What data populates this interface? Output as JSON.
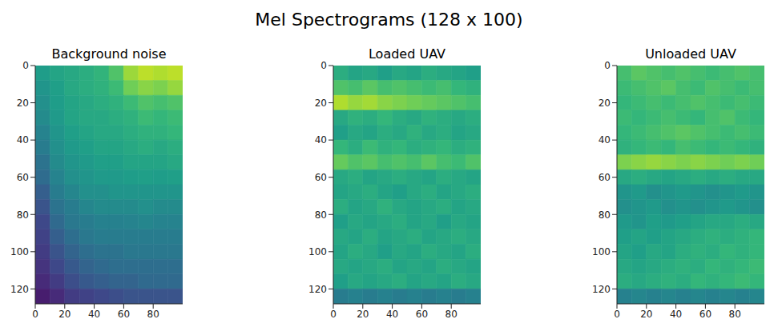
{
  "title": "Mel Spectrograms (128 x 100)",
  "chart_data": [
    {
      "type": "heatmap",
      "title": "Background noise",
      "xlim": [
        0,
        100
      ],
      "ylim": [
        128,
        0
      ],
      "xticks": [
        0,
        20,
        40,
        60,
        80
      ],
      "yticks": [
        0,
        20,
        40,
        60,
        80,
        100,
        120
      ],
      "cells": [
        [
          0.55,
          0.58,
          0.6,
          0.62,
          0.65,
          0.72,
          0.85,
          0.9,
          0.88,
          0.9
        ],
        [
          0.52,
          0.56,
          0.6,
          0.62,
          0.64,
          0.68,
          0.78,
          0.82,
          0.8,
          0.84
        ],
        [
          0.5,
          0.55,
          0.58,
          0.6,
          0.62,
          0.64,
          0.68,
          0.72,
          0.7,
          0.72
        ],
        [
          0.48,
          0.54,
          0.58,
          0.6,
          0.6,
          0.62,
          0.64,
          0.68,
          0.66,
          0.68
        ],
        [
          0.45,
          0.52,
          0.56,
          0.58,
          0.6,
          0.6,
          0.62,
          0.64,
          0.64,
          0.66
        ],
        [
          0.42,
          0.5,
          0.54,
          0.56,
          0.58,
          0.58,
          0.6,
          0.62,
          0.6,
          0.62
        ],
        [
          0.38,
          0.48,
          0.52,
          0.54,
          0.56,
          0.56,
          0.58,
          0.58,
          0.58,
          0.6
        ],
        [
          0.35,
          0.45,
          0.5,
          0.52,
          0.54,
          0.54,
          0.55,
          0.56,
          0.55,
          0.56
        ],
        [
          0.3,
          0.42,
          0.46,
          0.5,
          0.5,
          0.52,
          0.52,
          0.52,
          0.52,
          0.52
        ],
        [
          0.26,
          0.38,
          0.42,
          0.46,
          0.48,
          0.48,
          0.48,
          0.5,
          0.48,
          0.48
        ],
        [
          0.22,
          0.34,
          0.4,
          0.42,
          0.44,
          0.44,
          0.45,
          0.46,
          0.45,
          0.45
        ],
        [
          0.2,
          0.3,
          0.36,
          0.4,
          0.42,
          0.42,
          0.42,
          0.42,
          0.42,
          0.42
        ],
        [
          0.18,
          0.26,
          0.32,
          0.36,
          0.38,
          0.38,
          0.4,
          0.4,
          0.4,
          0.4
        ],
        [
          0.15,
          0.22,
          0.28,
          0.32,
          0.34,
          0.36,
          0.36,
          0.36,
          0.36,
          0.36
        ],
        [
          0.12,
          0.18,
          0.24,
          0.28,
          0.3,
          0.32,
          0.32,
          0.34,
          0.34,
          0.34
        ],
        [
          0.08,
          0.12,
          0.18,
          0.2,
          0.22,
          0.24,
          0.26,
          0.26,
          0.26,
          0.26
        ]
      ]
    },
    {
      "type": "heatmap",
      "title": "Loaded UAV",
      "xlim": [
        0,
        100
      ],
      "ylim": [
        128,
        0
      ],
      "xticks": [
        0,
        20,
        40,
        60,
        80
      ],
      "yticks": [
        0,
        20,
        40,
        60,
        80,
        100,
        120
      ],
      "cells": [
        [
          0.62,
          0.58,
          0.6,
          0.56,
          0.6,
          0.58,
          0.62,
          0.6,
          0.58,
          0.56
        ],
        [
          0.72,
          0.7,
          0.74,
          0.7,
          0.72,
          0.7,
          0.68,
          0.7,
          0.66,
          0.64
        ],
        [
          0.88,
          0.84,
          0.86,
          0.82,
          0.8,
          0.78,
          0.76,
          0.74,
          0.72,
          0.7
        ],
        [
          0.6,
          0.64,
          0.62,
          0.66,
          0.62,
          0.6,
          0.64,
          0.62,
          0.6,
          0.62
        ],
        [
          0.56,
          0.6,
          0.58,
          0.62,
          0.6,
          0.64,
          0.6,
          0.62,
          0.58,
          0.6
        ],
        [
          0.66,
          0.62,
          0.68,
          0.64,
          0.66,
          0.62,
          0.64,
          0.66,
          0.62,
          0.64
        ],
        [
          0.76,
          0.72,
          0.74,
          0.7,
          0.72,
          0.7,
          0.74,
          0.7,
          0.68,
          0.72
        ],
        [
          0.6,
          0.62,
          0.58,
          0.6,
          0.62,
          0.6,
          0.58,
          0.62,
          0.6,
          0.58
        ],
        [
          0.58,
          0.6,
          0.62,
          0.58,
          0.56,
          0.6,
          0.62,
          0.58,
          0.6,
          0.62
        ],
        [
          0.62,
          0.58,
          0.6,
          0.64,
          0.6,
          0.58,
          0.6,
          0.62,
          0.58,
          0.6
        ],
        [
          0.56,
          0.6,
          0.58,
          0.6,
          0.62,
          0.58,
          0.6,
          0.56,
          0.6,
          0.58
        ],
        [
          0.6,
          0.58,
          0.62,
          0.58,
          0.6,
          0.62,
          0.58,
          0.6,
          0.62,
          0.6
        ],
        [
          0.58,
          0.62,
          0.6,
          0.56,
          0.6,
          0.58,
          0.62,
          0.6,
          0.58,
          0.62
        ],
        [
          0.6,
          0.58,
          0.6,
          0.62,
          0.58,
          0.6,
          0.58,
          0.62,
          0.6,
          0.58
        ],
        [
          0.56,
          0.6,
          0.58,
          0.6,
          0.62,
          0.58,
          0.6,
          0.58,
          0.62,
          0.6
        ],
        [
          0.42,
          0.44,
          0.42,
          0.44,
          0.42,
          0.44,
          0.42,
          0.44,
          0.42,
          0.44
        ]
      ]
    },
    {
      "type": "heatmap",
      "title": "Unloaded UAV",
      "xlim": [
        0,
        100
      ],
      "ylim": [
        128,
        0
      ],
      "xticks": [
        0,
        20,
        40,
        60,
        80
      ],
      "yticks": [
        0,
        20,
        40,
        60,
        80,
        100,
        120
      ],
      "cells": [
        [
          0.7,
          0.74,
          0.72,
          0.7,
          0.72,
          0.7,
          0.68,
          0.7,
          0.72,
          0.7
        ],
        [
          0.68,
          0.7,
          0.72,
          0.74,
          0.7,
          0.68,
          0.72,
          0.7,
          0.68,
          0.7
        ],
        [
          0.66,
          0.68,
          0.7,
          0.68,
          0.7,
          0.72,
          0.7,
          0.68,
          0.7,
          0.68
        ],
        [
          0.68,
          0.66,
          0.68,
          0.7,
          0.68,
          0.66,
          0.7,
          0.72,
          0.68,
          0.66
        ],
        [
          0.66,
          0.68,
          0.7,
          0.72,
          0.74,
          0.72,
          0.7,
          0.68,
          0.7,
          0.68
        ],
        [
          0.64,
          0.66,
          0.68,
          0.66,
          0.7,
          0.68,
          0.66,
          0.68,
          0.66,
          0.64
        ],
        [
          0.8,
          0.82,
          0.84,
          0.82,
          0.8,
          0.82,
          0.8,
          0.78,
          0.8,
          0.78
        ],
        [
          0.6,
          0.62,
          0.6,
          0.58,
          0.6,
          0.62,
          0.6,
          0.62,
          0.6,
          0.6
        ],
        [
          0.52,
          0.54,
          0.5,
          0.52,
          0.54,
          0.52,
          0.5,
          0.52,
          0.54,
          0.52
        ],
        [
          0.5,
          0.52,
          0.54,
          0.5,
          0.52,
          0.5,
          0.52,
          0.54,
          0.52,
          0.5
        ],
        [
          0.54,
          0.52,
          0.56,
          0.54,
          0.56,
          0.58,
          0.6,
          0.6,
          0.62,
          0.6
        ],
        [
          0.56,
          0.58,
          0.56,
          0.58,
          0.6,
          0.62,
          0.64,
          0.62,
          0.64,
          0.66
        ],
        [
          0.58,
          0.56,
          0.6,
          0.58,
          0.62,
          0.64,
          0.62,
          0.66,
          0.64,
          0.66
        ],
        [
          0.6,
          0.58,
          0.6,
          0.62,
          0.64,
          0.62,
          0.66,
          0.64,
          0.66,
          0.68
        ],
        [
          0.62,
          0.6,
          0.62,
          0.64,
          0.62,
          0.66,
          0.64,
          0.66,
          0.68,
          0.66
        ],
        [
          0.44,
          0.46,
          0.44,
          0.46,
          0.44,
          0.46,
          0.44,
          0.46,
          0.44,
          0.46
        ]
      ]
    }
  ]
}
